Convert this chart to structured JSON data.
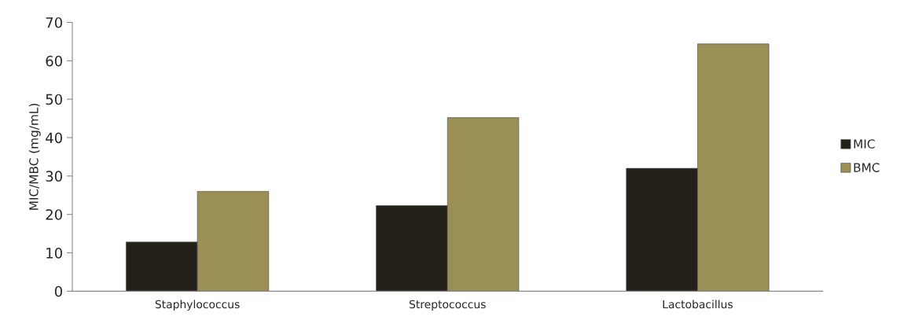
{
  "chart_data": {
    "type": "bar",
    "ylabel": "MIC/MBC (mg/mL)",
    "categories": [
      "Staphylococcus",
      "Streptococcus",
      "Lactobacillus"
    ],
    "series": [
      {
        "name": "MIC",
        "color": "#24211a",
        "values": [
          12.8,
          22.3,
          32
        ]
      },
      {
        "name": "BMC",
        "color": "#9a8f55",
        "values": [
          26,
          45.2,
          64.4
        ]
      }
    ],
    "ylim": [
      0,
      70
    ],
    "yticks": [
      0,
      10,
      20,
      30,
      40,
      50,
      60,
      70
    ],
    "grid": false,
    "legend": "right"
  }
}
